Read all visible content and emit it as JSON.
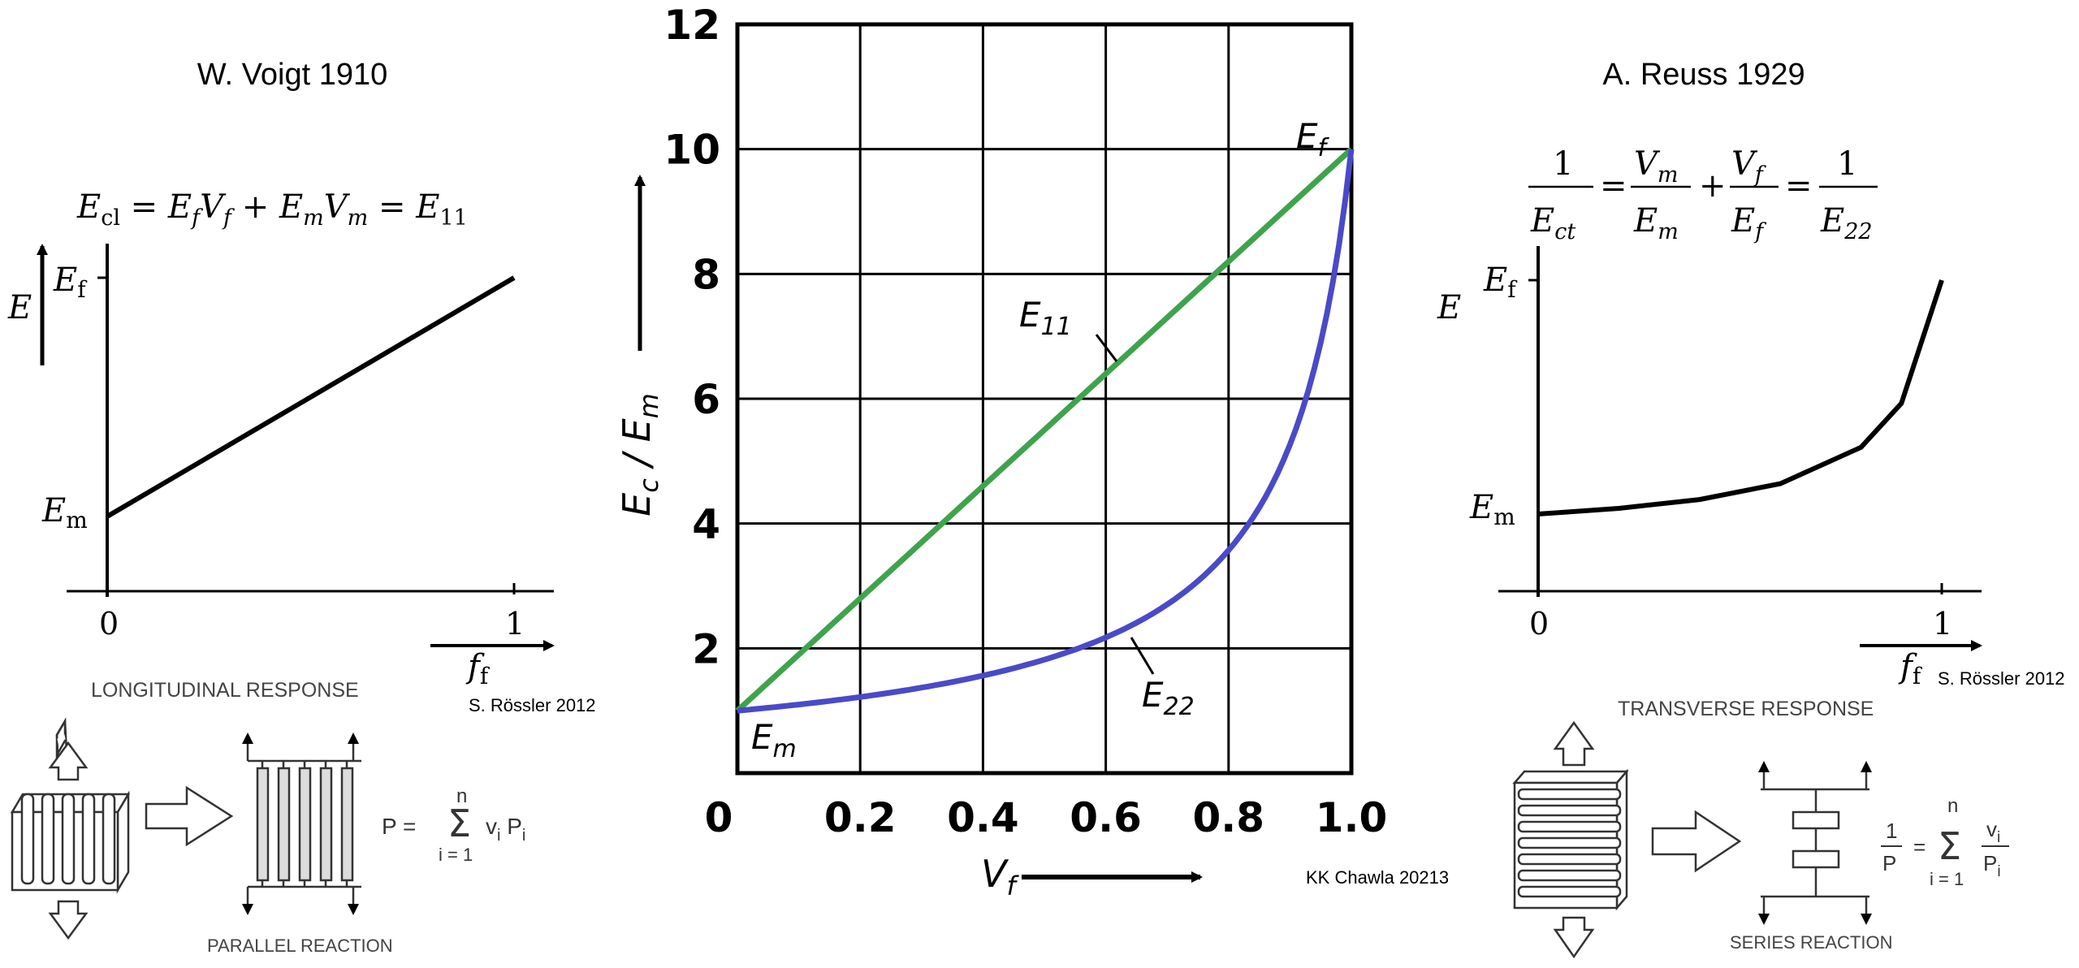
{
  "left_panel": {
    "title": "W. Voigt 1910",
    "formula": "E_cl = E_f V_f + E_m V_m = E_11",
    "y_axis_label": "E",
    "y_tick_top": "E_f",
    "y_tick_bottom": "E_m",
    "x_tick_0": "0",
    "x_tick_1": "1",
    "x_label": "f_f",
    "credit": "S. Rössler 2012",
    "response_label": "LONGITUDINAL RESPONSE",
    "reaction_label": "PARALLEL REACTION",
    "equation": "P = Σ (i = 1 .. n) v_i P_i",
    "sum_top": "n",
    "sum_bottom": "i = 1",
    "sum_symbol": "Σ"
  },
  "right_panel": {
    "title": "A. Reuss 1929",
    "formula": "1/E_ct = V_m/E_m + V_f/E_f = 1/E_22",
    "y_axis_label": "E",
    "y_tick_top": "E_f",
    "y_tick_bottom": "E_m",
    "x_tick_0": "0",
    "x_tick_1": "1",
    "x_label": "f_f",
    "credit": "S. Rössler 2012",
    "response_label": "TRANSVERSE RESPONSE",
    "reaction_label": "SERIES REACTION",
    "equation": "1/P = Σ (i = 1 .. n) v_i / P_i",
    "sum_top": "n",
    "sum_bottom": "i = 1",
    "sum_symbol": "Σ"
  },
  "center_credit": "KK Chawla 20213",
  "chart_data": [
    {
      "type": "line",
      "title": "",
      "xlabel": "f_f",
      "ylabel": "E",
      "xlim": [
        0,
        1
      ],
      "series": [
        {
          "name": "",
          "x": [
            0,
            1
          ],
          "y": [
            1,
            10
          ]
        }
      ],
      "y_ticks": [
        "E_f",
        "E_m"
      ],
      "x_ticks": [
        "0",
        "1"
      ],
      "color": "#000000"
    },
    {
      "type": "line",
      "title": "",
      "xlabel": "V_f",
      "ylabel": "E_c / E_m",
      "xlim": [
        0,
        1.0
      ],
      "ylim": [
        0,
        12
      ],
      "x_ticks": [
        "0",
        "0.2",
        "0.4",
        "0.6",
        "0.8",
        "1.0"
      ],
      "y_ticks": [
        "2",
        "4",
        "6",
        "8",
        "10",
        "12"
      ],
      "grid": true,
      "annotations": [
        "E_f",
        "E_m",
        "E_11",
        "E_22"
      ],
      "series": [
        {
          "name": "E11",
          "color": "#3fa34d",
          "x": [
            0,
            0.2,
            0.4,
            0.6,
            0.8,
            1.0
          ],
          "y": [
            1,
            2.8,
            4.6,
            6.4,
            8.2,
            10
          ]
        },
        {
          "name": "E22",
          "color": "#4a4ac8",
          "x": [
            0,
            0.1,
            0.2,
            0.3,
            0.4,
            0.5,
            0.6,
            0.7,
            0.8,
            0.85,
            0.9,
            0.95,
            0.98,
            1.0
          ],
          "y": [
            1,
            1.1,
            1.22,
            1.37,
            1.56,
            1.82,
            2.17,
            2.7,
            3.57,
            4.26,
            5.26,
            6.9,
            8.47,
            10
          ]
        }
      ]
    },
    {
      "type": "line",
      "title": "",
      "xlabel": "f_f",
      "ylabel": "E",
      "xlim": [
        0,
        1
      ],
      "series": [
        {
          "name": "",
          "x": [
            0,
            0.2,
            0.4,
            0.6,
            0.8,
            0.9,
            1.0
          ],
          "y": [
            1,
            1.22,
            1.56,
            2.17,
            3.57,
            5.26,
            10
          ]
        }
      ],
      "y_ticks": [
        "E_f",
        "E_m"
      ],
      "x_ticks": [
        "0",
        "1"
      ],
      "color": "#000000"
    }
  ]
}
